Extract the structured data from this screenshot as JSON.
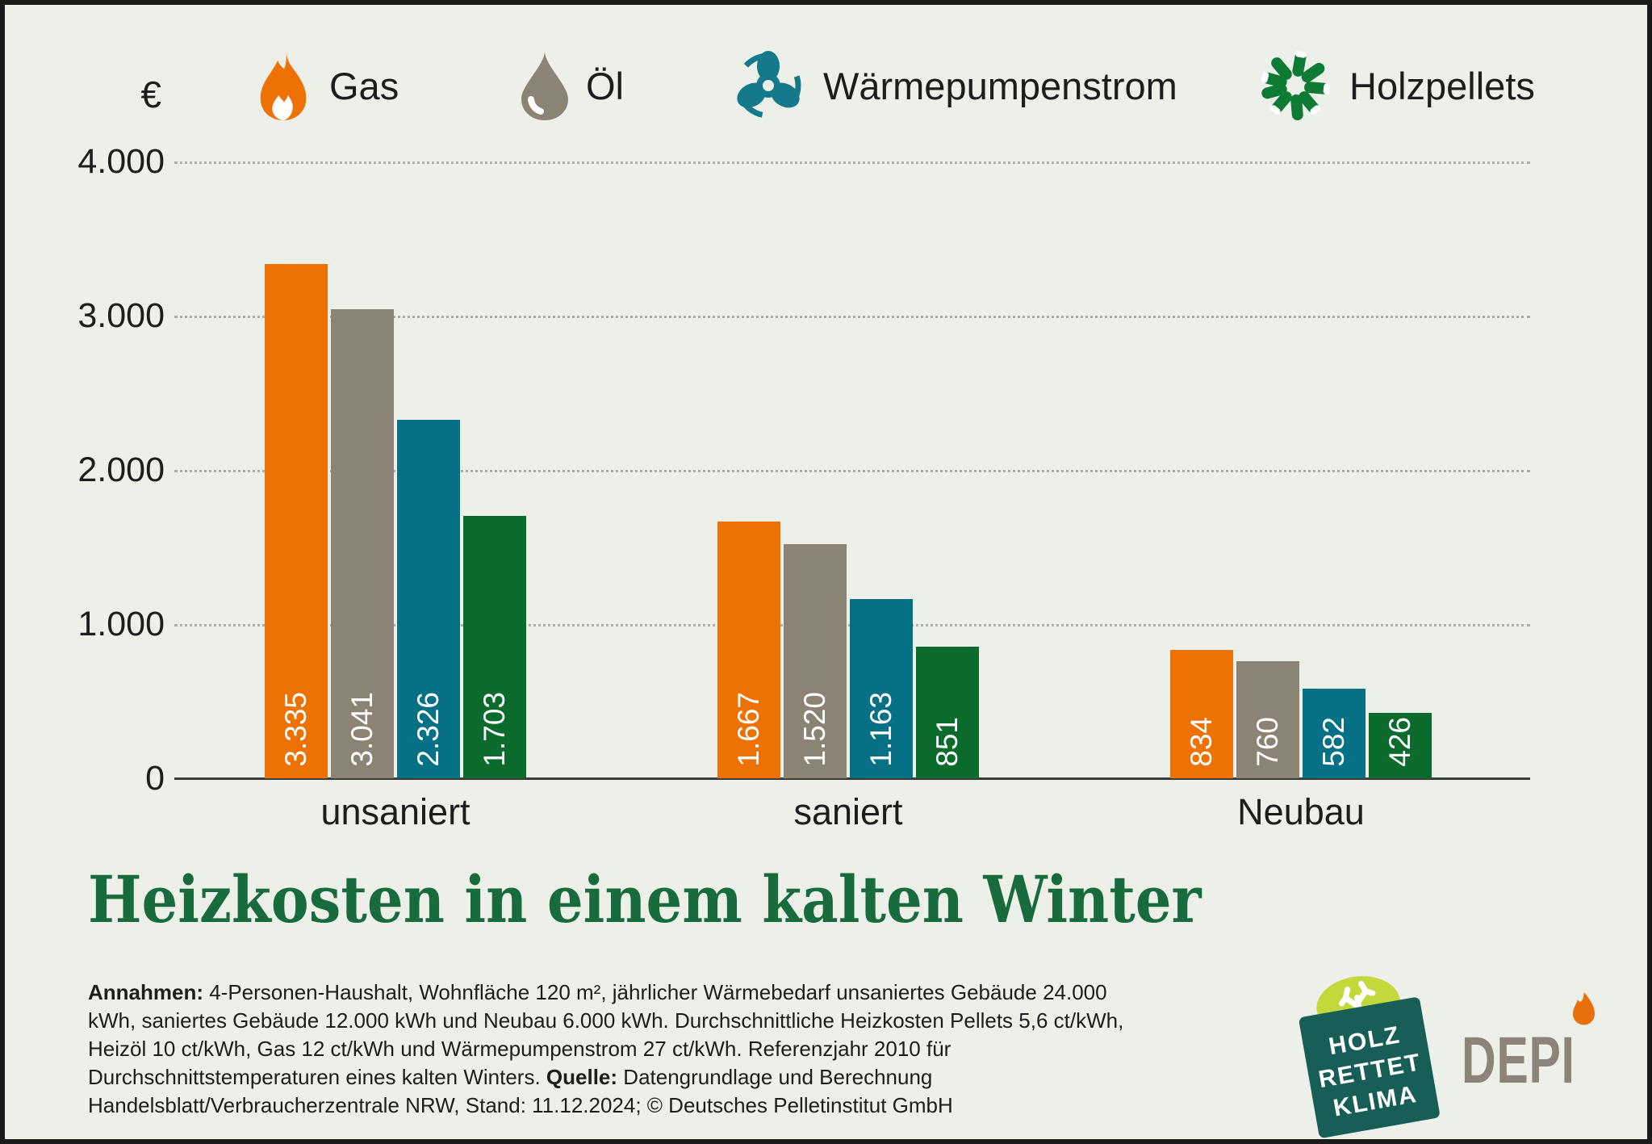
{
  "unit_symbol": "€",
  "legend": {
    "items": [
      {
        "label": "Gas",
        "icon": "flame-icon",
        "color": "#ED7203"
      },
      {
        "label": "Öl",
        "icon": "oil-drop-icon",
        "color": "#8B8374"
      },
      {
        "label": "Wärmepumpenstrom",
        "icon": "fan-icon",
        "color": "#147A8B"
      },
      {
        "label": "Holzpellets",
        "icon": "pellets-icon",
        "color": "#0E7B35"
      }
    ]
  },
  "chart_data": {
    "type": "bar",
    "title": "Heizkosten in einem kalten Winter",
    "unit": "€",
    "categories": [
      "unsaniert",
      "saniert",
      "Neubau"
    ],
    "series": [
      {
        "name": "Gas",
        "color": "#ED7203",
        "values": [
          3335,
          1667,
          834
        ],
        "labels": [
          "3.335",
          "1.667",
          "834"
        ]
      },
      {
        "name": "Öl",
        "color": "#8B8374",
        "values": [
          3041,
          1520,
          760
        ],
        "labels": [
          "3.041",
          "1.520",
          "760"
        ]
      },
      {
        "name": "Wärmepumpenstrom",
        "color": "#067185",
        "values": [
          2326,
          1163,
          582
        ],
        "labels": [
          "2.326",
          "1.163",
          "582"
        ]
      },
      {
        "name": "Holzpellets",
        "color": "#0A6B2C",
        "values": [
          1703,
          851,
          426
        ],
        "labels": [
          "1.703",
          "851",
          "426"
        ]
      }
    ],
    "y_axis": {
      "min": 0,
      "max": 4000,
      "ticks": [
        "4.000",
        "3.000",
        "2.000",
        "1.000",
        "0"
      ]
    },
    "grid": "dotted horizontal",
    "legend_position": "top",
    "value_labels": "inside bars, rotated 90°, white"
  },
  "footnote": {
    "annahmen_label": "Annahmen:",
    "annahmen_text": " 4-Personen-Haushalt, Wohnfläche 120 m², jährlicher Wärmebedarf unsaniertes Gebäude 24.000 kWh, saniertes Gebäude 12.000 kWh und Neubau 6.000 kWh. Durchschnittliche Heizkosten Pellets 5,6 ct/kWh, Heizöl 10 ct/kWh, Gas 12 ct/kWh und Wärmepumpenstrom 27 ct/kWh. Referenzjahr 2010 für Durchschnittstemperaturen eines kalten Winters. ",
    "quelle_label": "Quelle:",
    "quelle_text": " Datengrundlage und Berechnung Handelsblatt/Verbraucherzentrale NRW, Stand: 11.12.2024; © Deutsches Pelletinstitut GmbH"
  },
  "logos": {
    "holz_rettet_klima": {
      "lines": [
        "HOLZ",
        "RETTET",
        "KLIMA"
      ],
      "bg_color": "#175E57",
      "tree_color": "#C3D83B"
    },
    "depi": {
      "text": "DEPI",
      "color": "#8C8478",
      "flame_color": "#E8700A"
    }
  },
  "colors": {
    "background": "#EDEFE9",
    "frame_border": "#1A1A18",
    "text": "#1D1D1B",
    "title_green": "#176B3C",
    "gridline": "#ACAFA6",
    "axis_line": "#3C3C3A"
  }
}
